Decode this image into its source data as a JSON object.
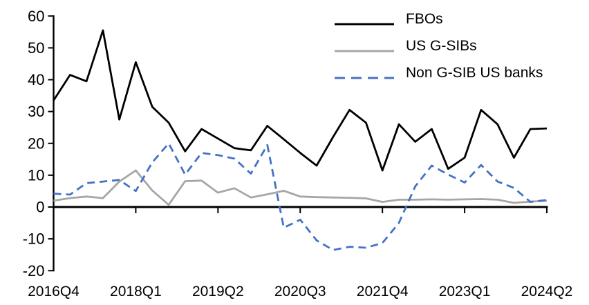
{
  "chart_data": {
    "type": "line",
    "title": "",
    "xlabel": "",
    "ylabel": "",
    "grid": false,
    "legend_position": "top-right",
    "ylim": [
      -20,
      60
    ],
    "ytick_step": 10,
    "ytick_labels": [
      "60",
      "50",
      "40",
      "30",
      "20",
      "10",
      "0",
      "-10",
      "-20"
    ],
    "xtick_labels": [
      "2016Q4",
      "2018Q1",
      "2019Q2",
      "2020Q3",
      "2021Q4",
      "2023Q1",
      "2024Q2"
    ],
    "xtick_every": 5,
    "categories": [
      "2016Q4",
      "2017Q1",
      "2017Q2",
      "2017Q3",
      "2017Q4",
      "2018Q1",
      "2018Q2",
      "2018Q3",
      "2018Q4",
      "2019Q1",
      "2019Q2",
      "2019Q3",
      "2019Q4",
      "2020Q1",
      "2020Q2",
      "2020Q3",
      "2020Q4",
      "2021Q1",
      "2021Q2",
      "2021Q3",
      "2021Q4",
      "2022Q1",
      "2022Q2",
      "2022Q3",
      "2022Q4",
      "2023Q1",
      "2023Q2",
      "2023Q3",
      "2023Q4",
      "2024Q1",
      "2024Q2"
    ],
    "series": [
      {
        "name": "FBOs",
        "color": "#000000",
        "dash": "solid",
        "values": [
          33.5,
          41.5,
          39.5,
          55.5,
          27.5,
          45.5,
          31.5,
          26.5,
          17.5,
          24.5,
          21.5,
          18.5,
          17.8,
          25.5,
          21.3,
          17,
          13,
          22,
          30.5,
          26.5,
          11.5,
          26,
          20.5,
          24.5,
          12,
          15.5,
          30.5,
          26,
          15.5,
          24.5,
          24.7
        ]
      },
      {
        "name": "US G-SIBs",
        "color": "#a6a6a6",
        "dash": "solid",
        "values": [
          2,
          2.8,
          3.3,
          2.8,
          8,
          11.5,
          5.2,
          0.7,
          8.1,
          8.3,
          4.5,
          5.9,
          3,
          4,
          5.1,
          3.3,
          3.1,
          3,
          2.9,
          2.7,
          1.6,
          2.3,
          2.3,
          2.4,
          2.3,
          2.4,
          2.5,
          2.3,
          1.3,
          1.7,
          2
        ]
      },
      {
        "name": "Non G-SIB US banks",
        "color": "#4472c4",
        "dash": "dashed",
        "values": [
          4.2,
          3.9,
          7.5,
          8,
          8.5,
          5,
          14,
          20,
          10.2,
          17,
          16.3,
          15.2,
          10.5,
          19.5,
          -6.5,
          -4,
          -10.5,
          -13.5,
          -12.5,
          -12.8,
          -11.3,
          -5,
          6.5,
          13,
          10.2,
          7.7,
          13.2,
          8,
          6,
          1.6,
          2.2
        ]
      }
    ]
  }
}
